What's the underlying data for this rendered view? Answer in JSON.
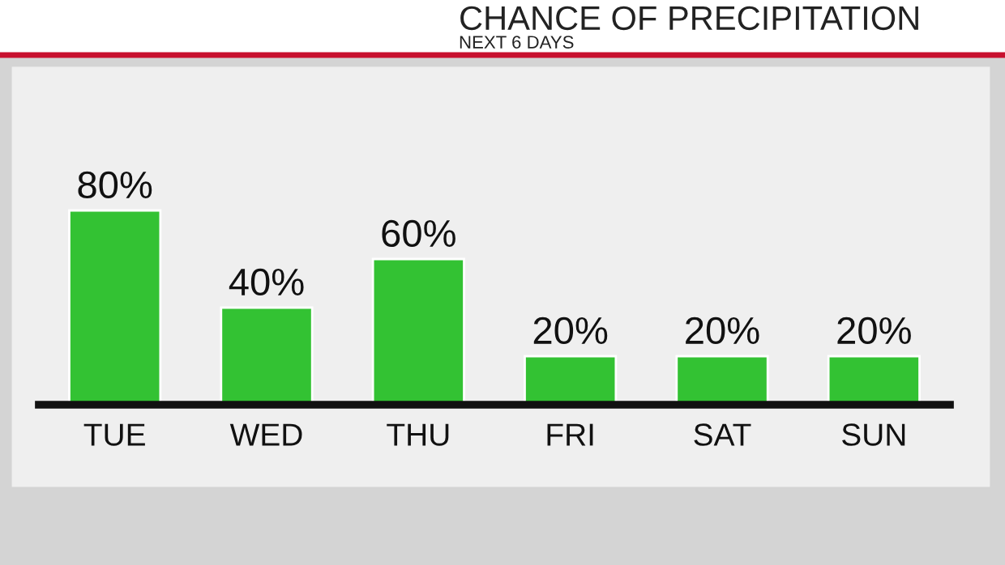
{
  "chart_data": {
    "type": "bar",
    "title": "CHANCE OF PRECIPITATION",
    "subtitle": "NEXT 6 DAYS",
    "categories": [
      "TUE",
      "WED",
      "THU",
      "FRI",
      "SAT",
      "SUN"
    ],
    "values": [
      80,
      40,
      60,
      20,
      20,
      20
    ],
    "value_labels": [
      "80%",
      "40%",
      "60%",
      "20%",
      "20%",
      "20%"
    ],
    "color": "#33c233",
    "tick_labels": "x",
    "grid": false,
    "legend": false
  }
}
